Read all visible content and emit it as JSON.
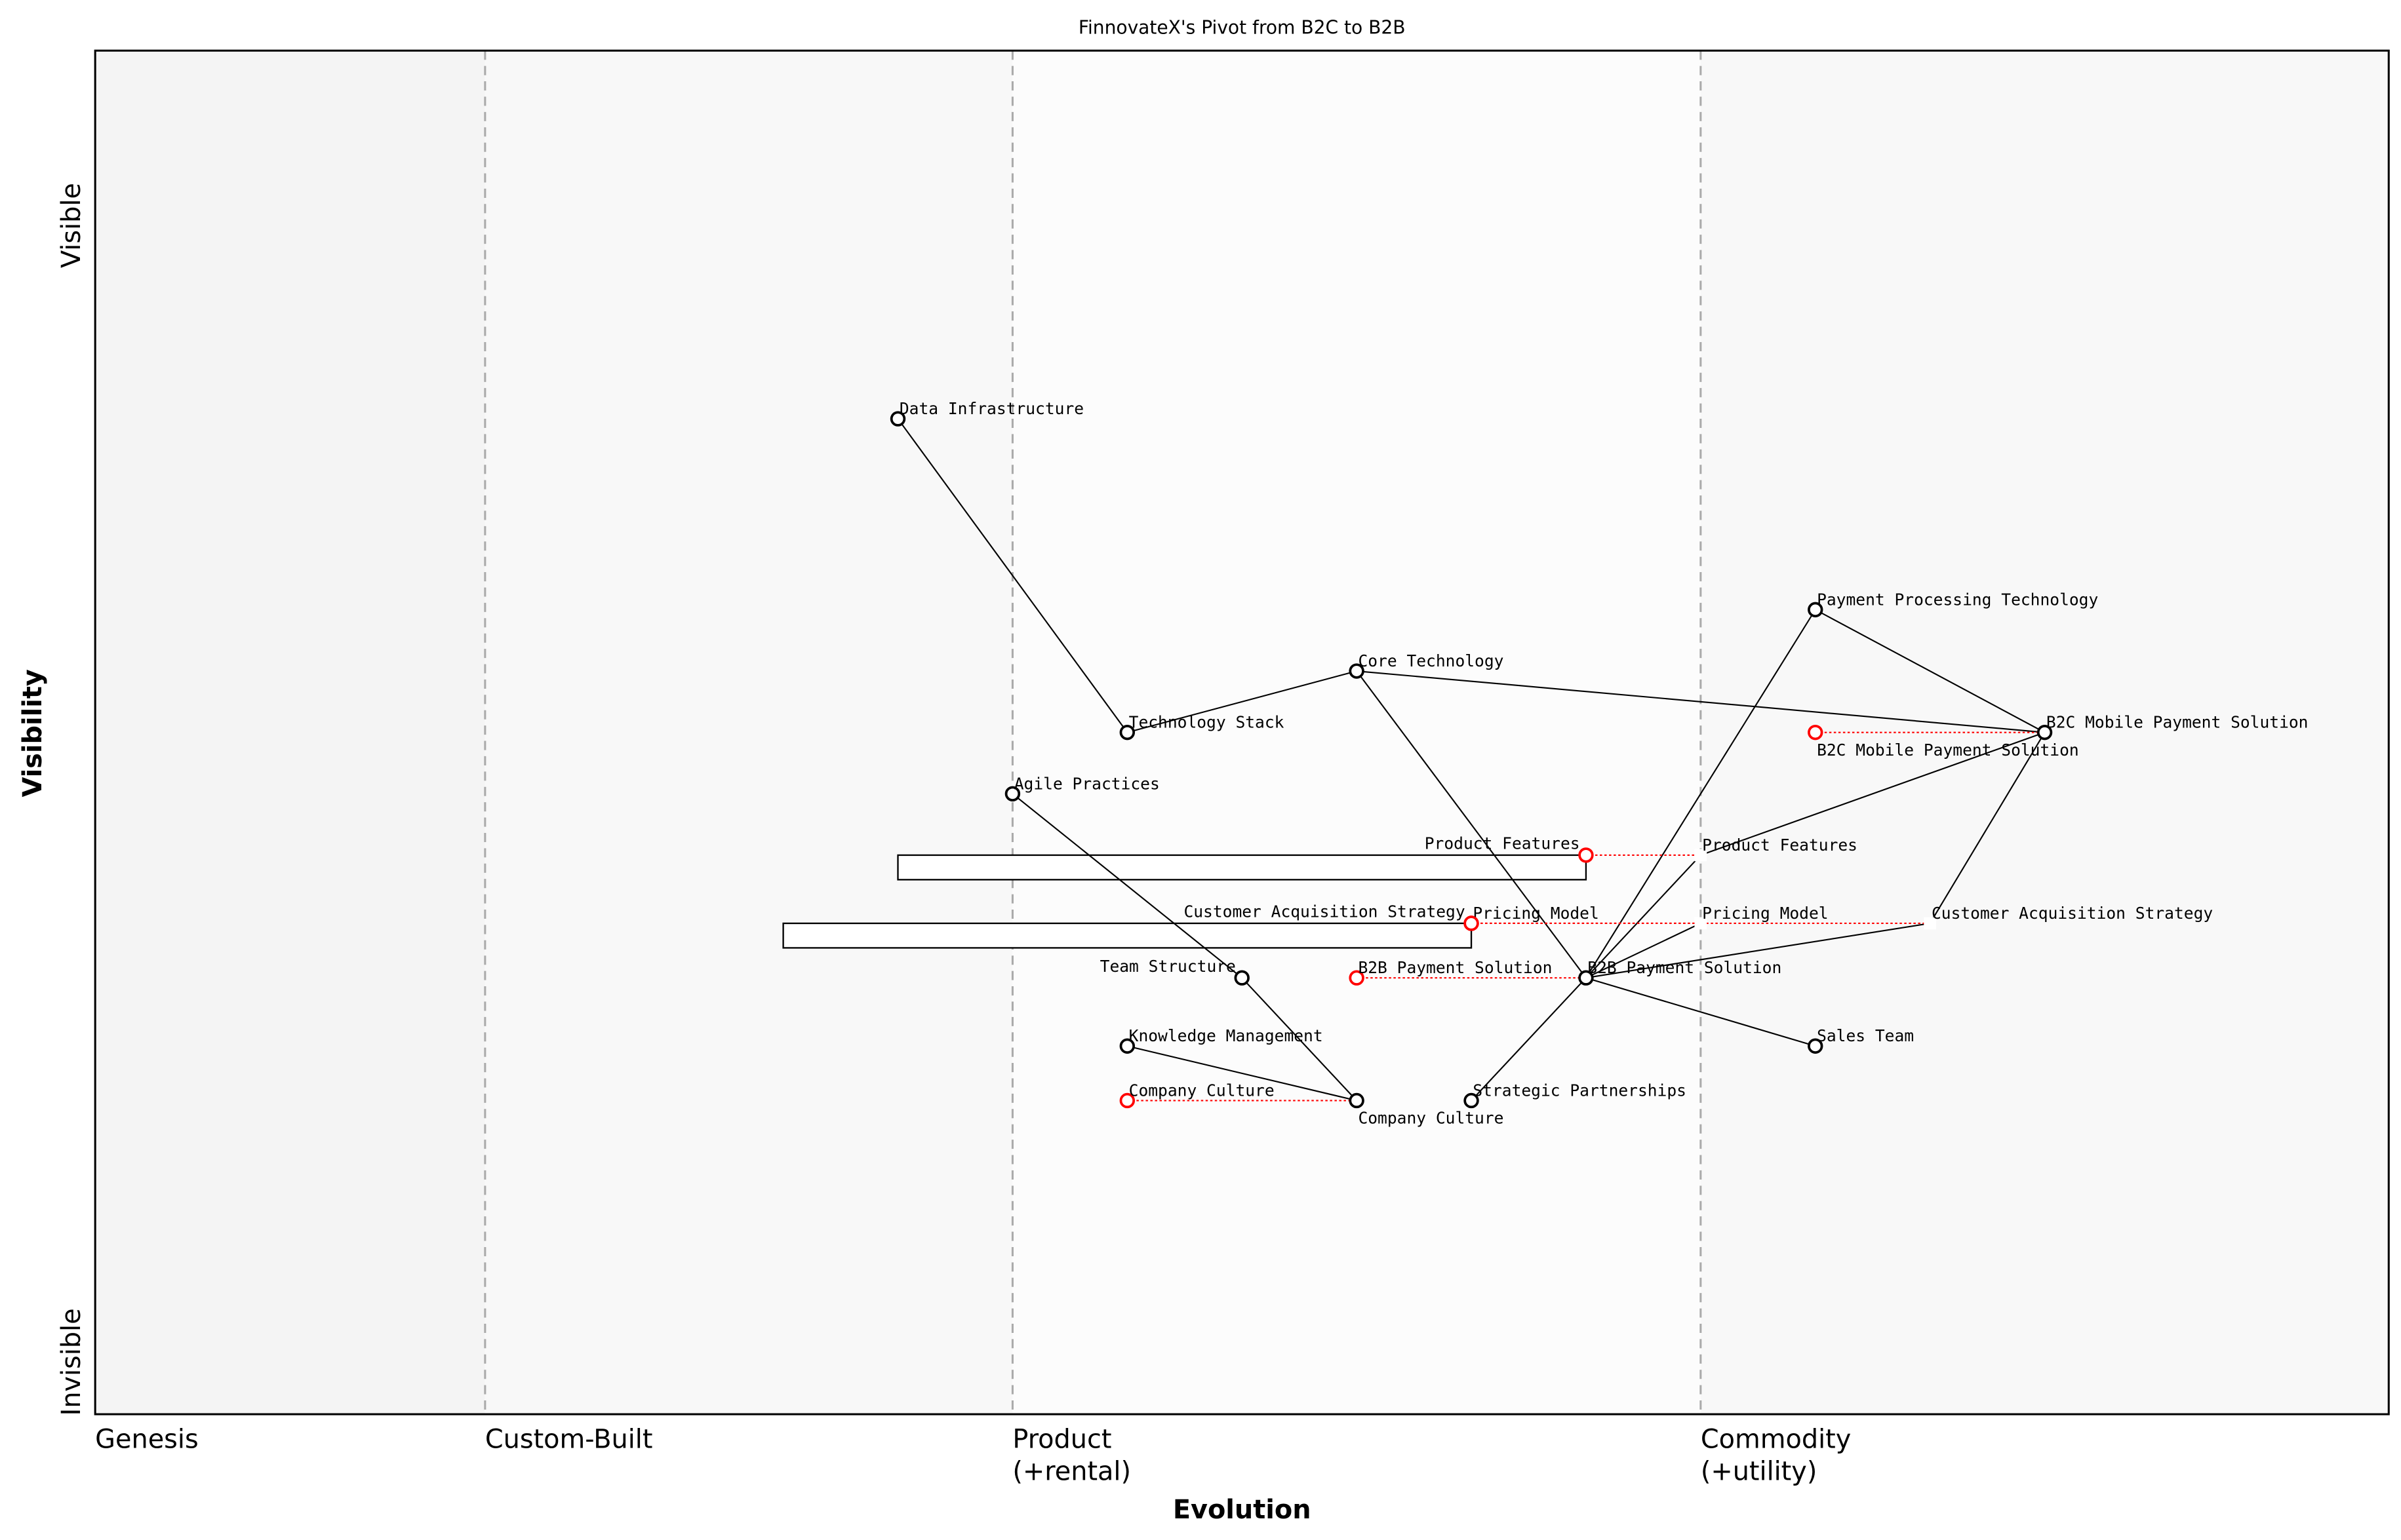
{
  "title": "FinnovateX's Pivot from B2C to B2B",
  "xlabel": "Evolution",
  "ylabel": "Visibility",
  "y_top_label": "Visible",
  "y_bottom_label": "Invisible",
  "stages": [
    {
      "label": "Genesis",
      "start": 0.0
    },
    {
      "label": "Custom-Built",
      "start": 0.17
    },
    {
      "label": "Product",
      "sub": "(+rental)",
      "start": 0.4
    },
    {
      "label": "Commodity",
      "sub": "(+utility)",
      "start": 0.7
    }
  ],
  "colors": {
    "current": "#000000",
    "previous": "#ff0000",
    "grid": "#aaaaaa"
  },
  "components": [
    {
      "id": "data_infra",
      "label": "Data Infrastructure",
      "evolution": 0.35,
      "visibility": 0.73,
      "marker": "current"
    },
    {
      "id": "tech_stack",
      "label": "Technology Stack",
      "evolution": 0.45,
      "visibility": 0.5,
      "marker": "current"
    },
    {
      "id": "core_tech",
      "label": "Core Technology",
      "evolution": 0.55,
      "visibility": 0.545,
      "marker": "current"
    },
    {
      "id": "agile",
      "label": "Agile Practices",
      "evolution": 0.4,
      "visibility": 0.455,
      "marker": "current"
    },
    {
      "id": "ppt",
      "label": "Payment Processing Technology",
      "evolution": 0.75,
      "visibility": 0.59,
      "marker": "current"
    },
    {
      "id": "b2c_old",
      "label": "B2C Mobile Payment Solution",
      "evolution": 0.75,
      "visibility": 0.5,
      "marker": "previous"
    },
    {
      "id": "b2c",
      "label": "B2C Mobile Payment Solution",
      "evolution": 0.85,
      "visibility": 0.5,
      "marker": "current"
    },
    {
      "id": "pf_old",
      "label": "Product Features",
      "evolution": 0.65,
      "visibility": 0.41,
      "marker": "previous"
    },
    {
      "id": "pf",
      "label": "Product Features",
      "evolution": 0.7,
      "visibility": 0.41,
      "marker": "hidden"
    },
    {
      "id": "pm_old",
      "label": "Pricing Model",
      "evolution": 0.6,
      "visibility": 0.36,
      "marker": "previous"
    },
    {
      "id": "cas_old",
      "label": "Customer Acquisition Strategy",
      "evolution": 0.6,
      "visibility": 0.36,
      "marker": "previous"
    },
    {
      "id": "pm",
      "label": "Pricing Model",
      "evolution": 0.7,
      "visibility": 0.36,
      "marker": "hidden"
    },
    {
      "id": "cas",
      "label": "Customer Acquisition Strategy",
      "evolution": 0.8,
      "visibility": 0.36,
      "marker": "hidden"
    },
    {
      "id": "team",
      "label": "Team Structure",
      "evolution": 0.5,
      "visibility": 0.32,
      "marker": "current"
    },
    {
      "id": "b2b_old",
      "label": "B2B Payment Solution",
      "evolution": 0.55,
      "visibility": 0.32,
      "marker": "previous"
    },
    {
      "id": "b2b",
      "label": "B2B Payment Solution",
      "evolution": 0.65,
      "visibility": 0.32,
      "marker": "current"
    },
    {
      "id": "km",
      "label": "Knowledge Management",
      "evolution": 0.45,
      "visibility": 0.27,
      "marker": "current"
    },
    {
      "id": "sales",
      "label": "Sales Team",
      "evolution": 0.75,
      "visibility": 0.27,
      "marker": "current"
    },
    {
      "id": "cc_old",
      "label": "Company Culture",
      "evolution": 0.45,
      "visibility": 0.23,
      "marker": "previous"
    },
    {
      "id": "cc",
      "label": "Company Culture",
      "evolution": 0.55,
      "visibility": 0.23,
      "marker": "current"
    },
    {
      "id": "sp",
      "label": "Strategic Partnerships",
      "evolution": 0.6,
      "visibility": 0.23,
      "marker": "current"
    }
  ],
  "links": [
    [
      "data_infra",
      "tech_stack"
    ],
    [
      "tech_stack",
      "core_tech"
    ],
    [
      "core_tech",
      "b2c"
    ],
    [
      "core_tech",
      "b2b"
    ],
    [
      "ppt",
      "b2c"
    ],
    [
      "ppt",
      "b2b"
    ],
    [
      "b2c",
      "pf"
    ],
    [
      "b2c",
      "cas"
    ],
    [
      "b2b",
      "pf"
    ],
    [
      "b2b",
      "pm"
    ],
    [
      "b2b",
      "cas"
    ],
    [
      "b2b",
      "sales"
    ],
    [
      "b2b",
      "sp"
    ],
    [
      "agile",
      "team"
    ],
    [
      "team",
      "cc"
    ],
    [
      "km",
      "cc"
    ]
  ],
  "evolutions": [
    [
      "b2c_old",
      "b2c"
    ],
    [
      "pf_old",
      "pf"
    ],
    [
      "pm_old",
      "pm"
    ],
    [
      "cas_old",
      "cas"
    ],
    [
      "b2b_old",
      "b2b"
    ],
    [
      "cc_old",
      "cc"
    ]
  ],
  "inertia": [
    {
      "component": "pf_old",
      "from": 0.35,
      "to": 0.65
    },
    {
      "component": "pm_old",
      "from": 0.3,
      "to": 0.6
    }
  ]
}
